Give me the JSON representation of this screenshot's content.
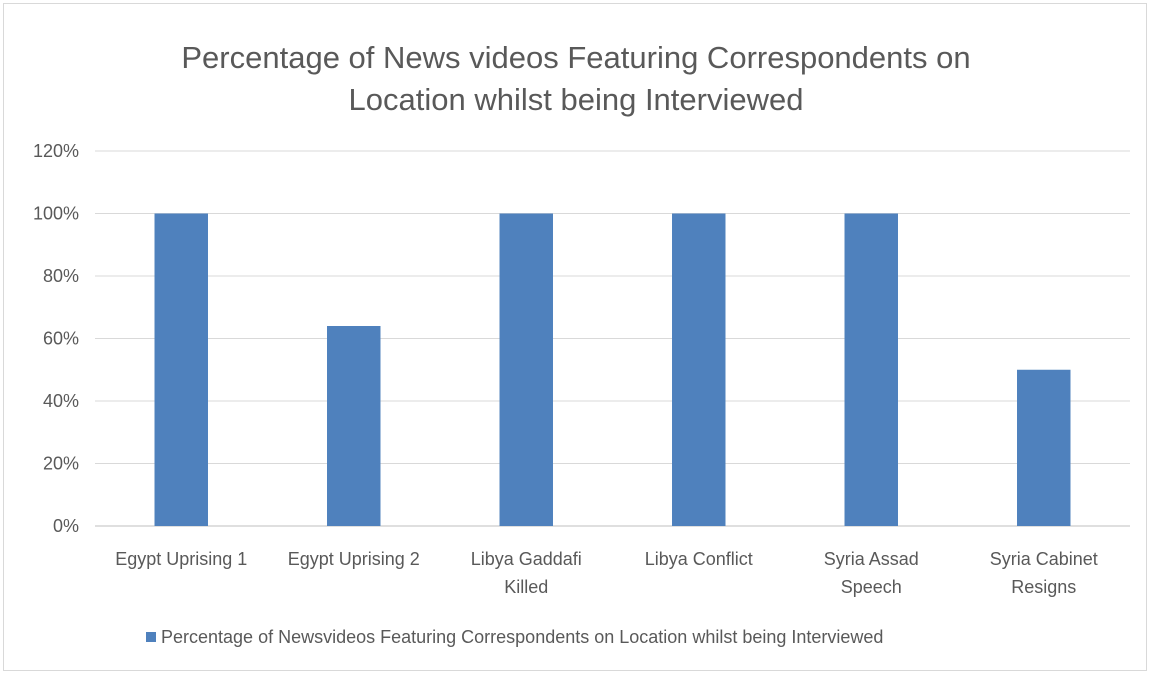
{
  "chart_data": {
    "type": "bar",
    "title_lines": [
      "Percentage of News videos Featuring Correspondents on",
      "Location whilst being Interviewed"
    ],
    "categories": [
      [
        "Egypt Uprising 1"
      ],
      [
        "Egypt Uprising 2"
      ],
      [
        "Libya Gaddafi",
        "Killed"
      ],
      [
        "Libya Conflict"
      ],
      [
        "Syria Assad",
        "Speech"
      ],
      [
        "Syria Cabinet",
        "Resigns"
      ]
    ],
    "series": [
      {
        "name": "Percentage of Newsvideos Featuring Correspondents on Location whilst being Interviewed",
        "values": [
          100,
          64,
          100,
          100,
          100,
          50
        ],
        "color": "#4f81bd"
      }
    ],
    "y_ticks": [
      "0%",
      "20%",
      "40%",
      "60%",
      "80%",
      "100%",
      "120%"
    ],
    "ylim": [
      0,
      120
    ],
    "grid": true,
    "legend_position": "bottom"
  }
}
